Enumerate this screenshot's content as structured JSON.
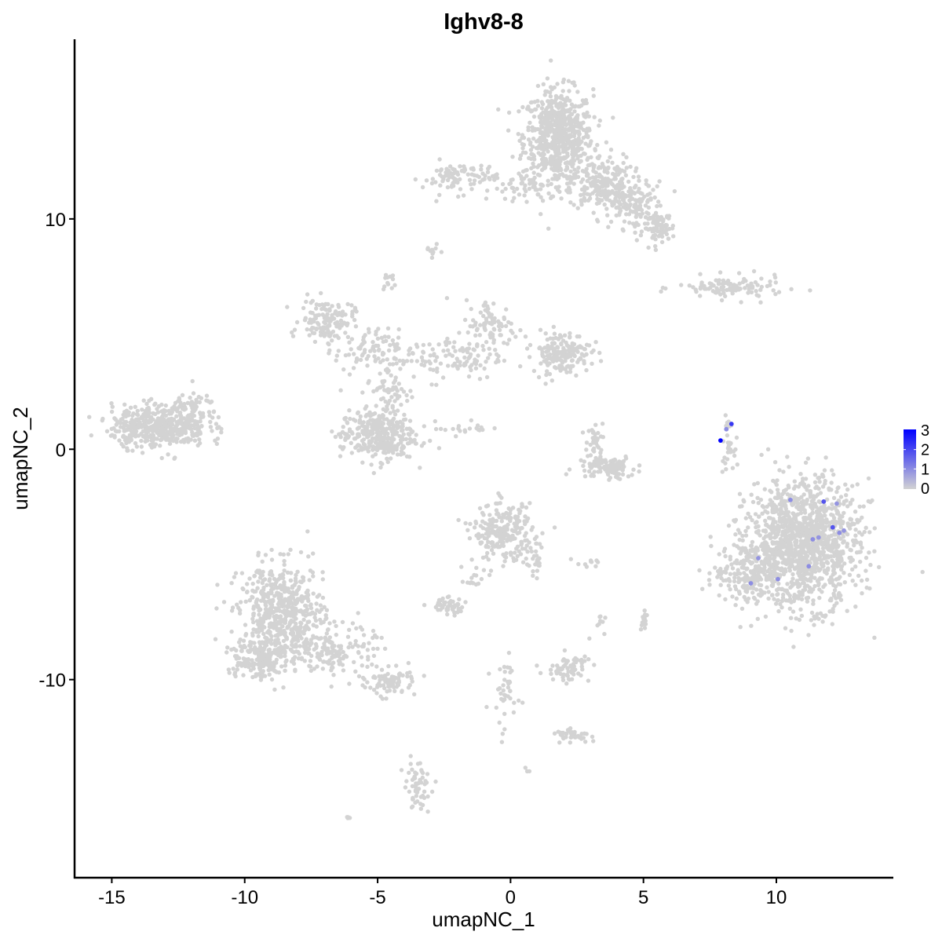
{
  "chart_data": {
    "type": "scatter",
    "title": "Ighv8-8",
    "xlabel": "umapNC_1",
    "ylabel": "umapNC_2",
    "xlim": [
      -16.4,
      14.4
    ],
    "ylim": [
      -18.6,
      17.8
    ],
    "x_ticks": [
      -15,
      -10,
      -5,
      0,
      5,
      10
    ],
    "y_ticks": [
      -10,
      0,
      10
    ],
    "x_tick_labels": [
      "-15",
      "-10",
      "-5",
      "0",
      "5",
      "10"
    ],
    "y_tick_labels": [
      "-10",
      "0",
      "10"
    ],
    "grid": false,
    "legend": {
      "position": "right",
      "type": "colorbar",
      "range": [
        0,
        3
      ],
      "ticks": [
        "0",
        "1",
        "2",
        "3"
      ],
      "low_color": "#d3d3d3",
      "high_color": "#0000ff"
    },
    "background_point_value": 0,
    "clusters_approx": [
      {
        "cx": 1.8,
        "cy": 13.6,
        "sx": 0.65,
        "sy": 1.0,
        "n": 650
      },
      {
        "cx": 3.4,
        "cy": 11.6,
        "sx": 0.6,
        "sy": 0.6,
        "n": 200
      },
      {
        "cx": 4.6,
        "cy": 10.6,
        "sx": 0.6,
        "sy": 0.5,
        "n": 140
      },
      {
        "cx": 5.6,
        "cy": 9.6,
        "sx": 0.3,
        "sy": 0.3,
        "n": 80
      },
      {
        "cx": 0.8,
        "cy": 11.4,
        "sx": 0.8,
        "sy": 0.3,
        "n": 60
      },
      {
        "cx": -1.9,
        "cy": 11.8,
        "sx": 0.7,
        "sy": 0.35,
        "n": 90
      },
      {
        "cx": -2.95,
        "cy": 8.6,
        "sx": 0.15,
        "sy": 0.12,
        "n": 10
      },
      {
        "cx": -4.6,
        "cy": 7.3,
        "sx": 0.15,
        "sy": 0.25,
        "n": 12
      },
      {
        "cx": 8.3,
        "cy": 7.0,
        "sx": 1.0,
        "sy": 0.25,
        "n": 110
      },
      {
        "cx": -6.9,
        "cy": 5.6,
        "sx": 0.5,
        "sy": 0.45,
        "n": 140
      },
      {
        "cx": -5.4,
        "cy": 4.3,
        "sx": 0.6,
        "sy": 0.45,
        "n": 70
      },
      {
        "cx": -4.6,
        "cy": 2.6,
        "sx": 0.4,
        "sy": 0.8,
        "n": 70
      },
      {
        "cx": -2.4,
        "cy": 4.0,
        "sx": 1.1,
        "sy": 0.5,
        "n": 110
      },
      {
        "cx": -0.7,
        "cy": 5.3,
        "sx": 0.5,
        "sy": 0.6,
        "n": 90
      },
      {
        "cx": 1.9,
        "cy": 4.2,
        "sx": 0.55,
        "sy": 0.45,
        "n": 170
      },
      {
        "cx": -5.0,
        "cy": 0.6,
        "sx": 0.7,
        "sy": 0.55,
        "n": 330
      },
      {
        "cx": -1.8,
        "cy": 0.9,
        "sx": 0.5,
        "sy": 0.15,
        "n": 20
      },
      {
        "cx": -13.2,
        "cy": 1.0,
        "sx": 0.9,
        "sy": 0.45,
        "n": 480
      },
      {
        "cx": -11.8,
        "cy": 1.8,
        "sx": 0.4,
        "sy": 0.35,
        "n": 50
      },
      {
        "cx": 3.6,
        "cy": -0.8,
        "sx": 0.55,
        "sy": 0.25,
        "n": 110
      },
      {
        "cx": 3.2,
        "cy": 0.6,
        "sx": 0.25,
        "sy": 0.4,
        "n": 30
      },
      {
        "cx": 8.15,
        "cy": 0.2,
        "sx": 0.12,
        "sy": 0.5,
        "n": 30
      },
      {
        "cx": 11.0,
        "cy": -4.1,
        "sx": 1.05,
        "sy": 1.35,
        "n": 1300
      },
      {
        "cx": 9.0,
        "cy": -5.3,
        "sx": 0.7,
        "sy": 0.7,
        "n": 200
      },
      {
        "cx": -0.3,
        "cy": -3.6,
        "sx": 0.55,
        "sy": 0.6,
        "n": 230
      },
      {
        "cx": 0.9,
        "cy": -4.8,
        "sx": 0.25,
        "sy": 0.4,
        "n": 30
      },
      {
        "cx": -8.6,
        "cy": -7.2,
        "sx": 0.8,
        "sy": 1.1,
        "n": 600
      },
      {
        "cx": -9.6,
        "cy": -9.1,
        "sx": 0.55,
        "sy": 0.45,
        "n": 150
      },
      {
        "cx": -6.5,
        "cy": -8.8,
        "sx": 0.7,
        "sy": 0.55,
        "n": 150
      },
      {
        "cx": -4.5,
        "cy": -10.1,
        "sx": 0.45,
        "sy": 0.3,
        "n": 80
      },
      {
        "cx": -2.4,
        "cy": -6.8,
        "sx": 0.35,
        "sy": 0.18,
        "n": 50
      },
      {
        "cx": -1.3,
        "cy": -5.6,
        "sx": 0.3,
        "sy": 0.4,
        "n": 15
      },
      {
        "cx": 2.2,
        "cy": -9.5,
        "sx": 0.4,
        "sy": 0.3,
        "n": 70
      },
      {
        "cx": 2.3,
        "cy": -12.4,
        "sx": 0.35,
        "sy": 0.12,
        "n": 40
      },
      {
        "cx": -0.2,
        "cy": -10.8,
        "sx": 0.25,
        "sy": 1.0,
        "n": 40
      },
      {
        "cx": -3.5,
        "cy": -14.6,
        "sx": 0.25,
        "sy": 0.5,
        "n": 60
      },
      {
        "cx": 5.0,
        "cy": -7.4,
        "sx": 0.1,
        "sy": 0.3,
        "n": 15
      },
      {
        "cx": 3.4,
        "cy": -7.6,
        "sx": 0.12,
        "sy": 0.2,
        "n": 8
      },
      {
        "cx": 2.9,
        "cy": -5.0,
        "sx": 0.3,
        "sy": 0.1,
        "n": 10
      },
      {
        "cx": -6.1,
        "cy": -16.0,
        "sx": 0.1,
        "sy": 0.06,
        "n": 4
      },
      {
        "cx": 0.6,
        "cy": -13.9,
        "sx": 0.06,
        "sy": 0.06,
        "n": 3
      }
    ],
    "expressing_points": [
      {
        "x": 8.12,
        "y": 0.87,
        "value": 1.0
      },
      {
        "x": 10.53,
        "y": -2.2,
        "value": 1.0
      },
      {
        "x": 12.27,
        "y": -2.36,
        "value": 0.9
      },
      {
        "x": 12.54,
        "y": -3.53,
        "value": 0.9
      },
      {
        "x": 11.59,
        "y": -3.83,
        "value": 0.9
      },
      {
        "x": 9.32,
        "y": -4.73,
        "value": 0.9
      },
      {
        "x": 12.37,
        "y": -3.63,
        "value": 1.0
      },
      {
        "x": 11.37,
        "y": -3.91,
        "value": 1.0
      },
      {
        "x": 11.22,
        "y": -5.08,
        "value": 1.0
      },
      {
        "x": 10.06,
        "y": -5.64,
        "value": 1.0
      },
      {
        "x": 9.04,
        "y": -5.82,
        "value": 1.0
      },
      {
        "x": 11.78,
        "y": -2.27,
        "value": 1.8
      },
      {
        "x": 12.12,
        "y": -3.39,
        "value": 1.8
      },
      {
        "x": 8.31,
        "y": 1.1,
        "value": 2.2
      },
      {
        "x": 7.9,
        "y": 0.38,
        "value": 3.0
      }
    ]
  }
}
